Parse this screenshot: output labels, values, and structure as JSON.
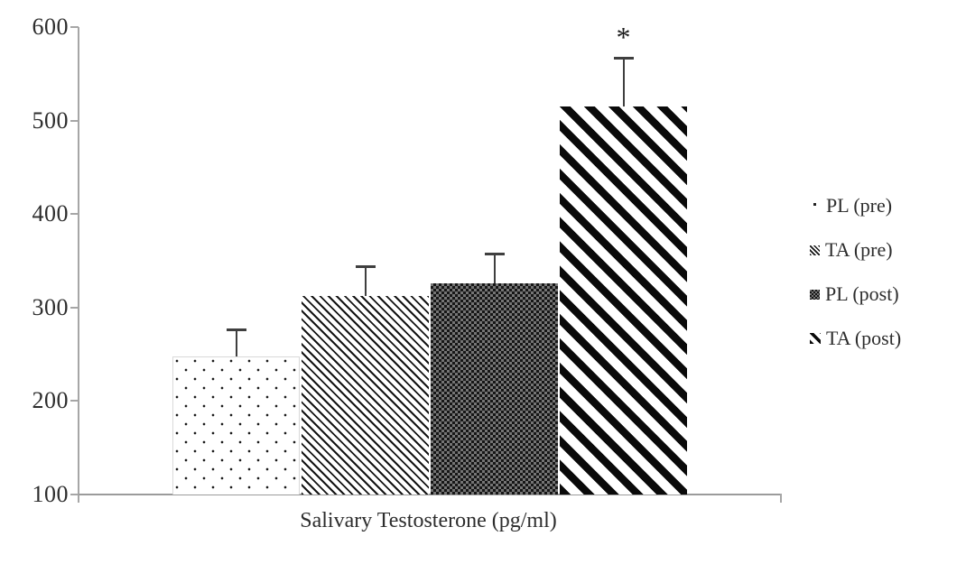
{
  "chart_data": {
    "type": "bar",
    "title": "",
    "xlabel": "Salivary Testosterone (pg/ml)",
    "ylabel": "",
    "ylim": [
      100,
      600
    ],
    "yticks": [
      100,
      200,
      300,
      400,
      500,
      600
    ],
    "grid": false,
    "error_bars": "upper-only",
    "series": [
      {
        "name": "PL (pre)",
        "value": 248,
        "error_top": 277,
        "pattern": "dots",
        "annotation": ""
      },
      {
        "name": "TA (pre)",
        "value": 312,
        "error_top": 344,
        "pattern": "thin-diagonal",
        "annotation": ""
      },
      {
        "name": "PL (post)",
        "value": 326,
        "error_top": 358,
        "pattern": "checkerboard",
        "annotation": ""
      },
      {
        "name": "TA (post)",
        "value": 515,
        "error_top": 567,
        "pattern": "bold-diagonal",
        "annotation": "*"
      }
    ],
    "legend": {
      "position": "right",
      "entries": [
        {
          "label": "PL (pre)",
          "swatch": "dots"
        },
        {
          "label": "TA (pre)",
          "swatch": "thin-diagonal"
        },
        {
          "label": "PL (post)",
          "swatch": "checkerboard"
        },
        {
          "label": "TA (post)",
          "swatch": "bold-diagonal"
        }
      ]
    }
  },
  "colors": {
    "background": "#ffffff",
    "text": "#2d2d2d",
    "axis": "#a6a6a6",
    "bar_pattern": "#111111",
    "checker_alt": "#757575",
    "error_bar": "#3f3f3f"
  }
}
